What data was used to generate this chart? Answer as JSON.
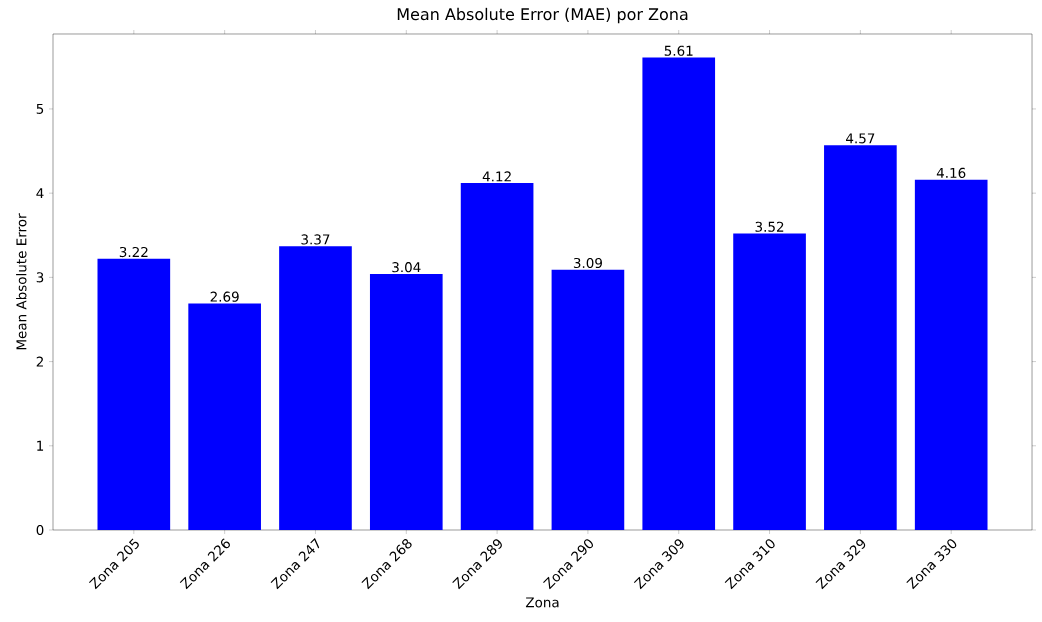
{
  "chart_data": {
    "type": "bar",
    "title": "Mean Absolute Error (MAE) por Zona",
    "xlabel": "Zona",
    "ylabel": "Mean Absolute Error",
    "categories": [
      "Zona 205",
      "Zona 226",
      "Zona 247",
      "Zona 268",
      "Zona 289",
      "Zona 290",
      "Zona 309",
      "Zona 310",
      "Zona 329",
      "Zona 330"
    ],
    "values": [
      3.22,
      2.69,
      3.37,
      3.04,
      4.12,
      3.09,
      5.61,
      3.52,
      4.57,
      4.16
    ],
    "color": "#0000ff",
    "ylim": [
      0,
      5.89
    ],
    "yticks": [
      0,
      1,
      2,
      3,
      4,
      5
    ],
    "data_labels": true
  }
}
